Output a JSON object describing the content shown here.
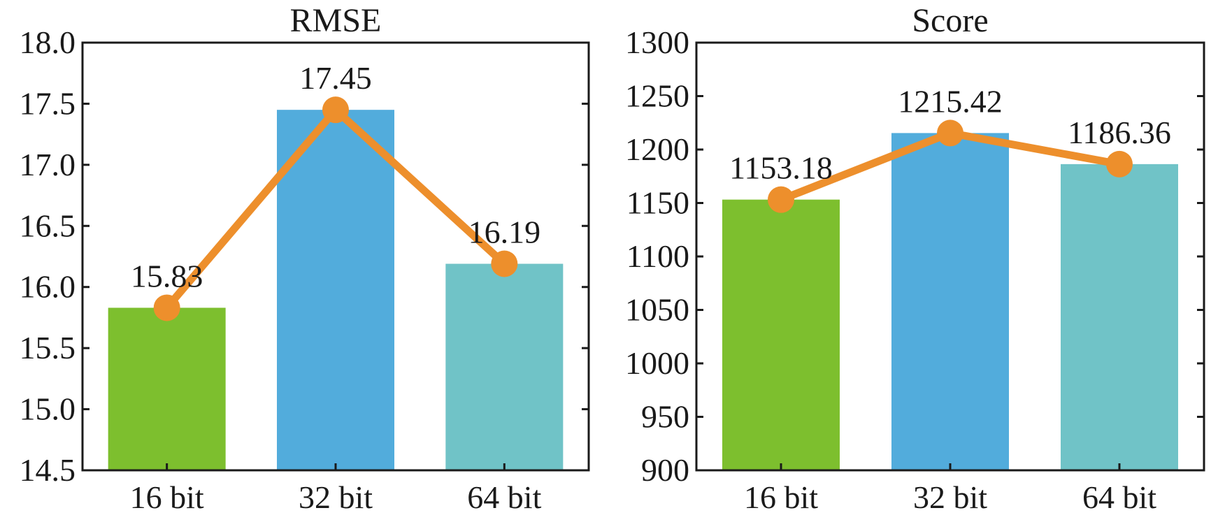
{
  "chart_data": [
    {
      "type": "bar",
      "title": "RMSE",
      "xlabel": "",
      "ylabel": "",
      "categories": [
        "16 bit",
        "32 bit",
        "64 bit"
      ],
      "values": [
        15.83,
        17.45,
        16.19
      ],
      "data_labels": [
        "15.83",
        "17.45",
        "16.19"
      ],
      "ylim": [
        14.5,
        18.0
      ],
      "yticks": [
        14.5,
        15.0,
        15.5,
        16.0,
        16.5,
        17.0,
        17.5,
        18.0
      ],
      "ytick_labels": [
        "14.5",
        "15.0",
        "15.5",
        "16.0",
        "16.5",
        "17.0",
        "17.5",
        "18.0"
      ],
      "bar_colors": [
        "#7dbf2e",
        "#52acdc",
        "#70c3c7"
      ],
      "line_overlay": true,
      "line_color": "#ed8f2c",
      "grid": false,
      "legend": "none"
    },
    {
      "type": "bar",
      "title": "Score",
      "xlabel": "",
      "ylabel": "",
      "categories": [
        "16 bit",
        "32 bit",
        "64 bit"
      ],
      "values": [
        1153.18,
        1215.42,
        1186.36
      ],
      "data_labels": [
        "1153.18",
        "1215.42",
        "1186.36"
      ],
      "ylim": [
        900,
        1300
      ],
      "yticks": [
        900,
        950,
        1000,
        1050,
        1100,
        1150,
        1200,
        1250,
        1300
      ],
      "ytick_labels": [
        "900",
        "950",
        "1000",
        "1050",
        "1100",
        "1150",
        "1200",
        "1250",
        "1300"
      ],
      "bar_colors": [
        "#7dbf2e",
        "#52acdc",
        "#70c3c7"
      ],
      "line_overlay": true,
      "line_color": "#ed8f2c",
      "grid": false,
      "legend": "none"
    }
  ]
}
